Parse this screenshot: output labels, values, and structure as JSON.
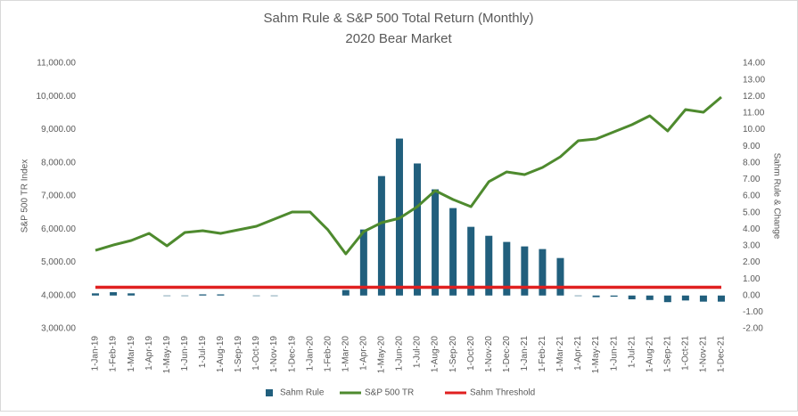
{
  "chart_data": {
    "type": "combo",
    "title": "Sahm Rule & S&P 500 Total Return (Monthly)",
    "subtitle": "2020 Bear Market",
    "y_label": "S&P 500 TR Index",
    "y2_label": "Sahm Rule & Change",
    "categories": [
      "1-Jan-19",
      "1-Feb-19",
      "1-Mar-19",
      "1-Apr-19",
      "1-May-19",
      "1-Jun-19",
      "1-Jul-19",
      "1-Aug-19",
      "1-Sep-19",
      "1-Oct-19",
      "1-Nov-19",
      "1-Dec-19",
      "1-Jan-20",
      "1-Feb-20",
      "1-Mar-20",
      "1-Apr-20",
      "1-May-20",
      "1-Jun-20",
      "1-Jul-20",
      "1-Aug-20",
      "1-Sep-20",
      "1-Oct-20",
      "1-Nov-20",
      "1-Dec-20",
      "1-Jan-21",
      "1-Feb-21",
      "1-Mar-21",
      "1-Apr-21",
      "1-May-21",
      "1-Jun-21",
      "1-Jul-21",
      "1-Aug-21",
      "1-Sep-21",
      "1-Oct-21",
      "1-Nov-21",
      "1-Dec-21"
    ],
    "series": [
      {
        "name": "Sahm Rule",
        "type": "bar",
        "axis": "y2",
        "color": "#215f7d",
        "values": [
          0.13,
          0.2,
          0.13,
          0,
          -0.03,
          -0.03,
          0.07,
          0.07,
          0,
          -0.03,
          -0.03,
          0,
          0,
          0,
          0.33,
          3.98,
          7.2,
          9.46,
          7.96,
          6.4,
          5.27,
          4.14,
          3.6,
          3.23,
          2.96,
          2.8,
          2.26,
          -0.03,
          -0.1,
          -0.07,
          -0.23,
          -0.27,
          -0.4,
          -0.3,
          -0.37,
          -0.37
        ]
      },
      {
        "name": "S&P 500 TR",
        "type": "line",
        "axis": "y",
        "color": "#4e8a2e",
        "values": [
          5362,
          5523,
          5658,
          5872,
          5497,
          5899,
          5953,
          5872,
          5980,
          6087,
          6302,
          6517,
          6517,
          5980,
          5255,
          5926,
          6195,
          6329,
          6678,
          7161,
          6893,
          6678,
          7430,
          7725,
          7644,
          7859,
          8181,
          8664,
          8718,
          8933,
          9148,
          9416,
          8960,
          9604,
          9523,
          9980
        ]
      },
      {
        "name": "Sahm Threshold",
        "type": "line",
        "axis": "y2",
        "color": "#e02020",
        "values": [
          0.5,
          0.5,
          0.5,
          0.5,
          0.5,
          0.5,
          0.5,
          0.5,
          0.5,
          0.5,
          0.5,
          0.5,
          0.5,
          0.5,
          0.5,
          0.5,
          0.5,
          0.5,
          0.5,
          0.5,
          0.5,
          0.5,
          0.5,
          0.5,
          0.5,
          0.5,
          0.5,
          0.5,
          0.5,
          0.5,
          0.5,
          0.5,
          0.5,
          0.5,
          0.5,
          0.5
        ]
      }
    ],
    "ylim": [
      3000,
      11000
    ],
    "yticks": [
      {
        "value": 3000,
        "label": "3,000.00"
      },
      {
        "value": 4000,
        "label": "4,000.00"
      },
      {
        "value": 5000,
        "label": "5,000.00"
      },
      {
        "value": 6000,
        "label": "6,000.00"
      },
      {
        "value": 7000,
        "label": "7,000.00"
      },
      {
        "value": 8000,
        "label": "8,000.00"
      },
      {
        "value": 9000,
        "label": "9,000.00"
      },
      {
        "value": 10000,
        "label": "10,000.00"
      },
      {
        "value": 11000,
        "label": "11,000.00"
      }
    ],
    "y2lim": [
      -2,
      14
    ],
    "y2ticks": [
      {
        "value": -2,
        "label": "-2.00"
      },
      {
        "value": -1,
        "label": "-1.00"
      },
      {
        "value": 0,
        "label": "0.00"
      },
      {
        "value": 1,
        "label": "1.00"
      },
      {
        "value": 2,
        "label": "2.00"
      },
      {
        "value": 3,
        "label": "3.00"
      },
      {
        "value": 4,
        "label": "4.00"
      },
      {
        "value": 5,
        "label": "5.00"
      },
      {
        "value": 6,
        "label": "6.00"
      },
      {
        "value": 7,
        "label": "7.00"
      },
      {
        "value": 8,
        "label": "8.00"
      },
      {
        "value": 9,
        "label": "9.00"
      },
      {
        "value": 10,
        "label": "10.00"
      },
      {
        "value": 11,
        "label": "11.00"
      },
      {
        "value": 12,
        "label": "12.00"
      },
      {
        "value": 13,
        "label": "13.00"
      },
      {
        "value": 14,
        "label": "14.00"
      }
    ],
    "grid": false,
    "legend": "bottom"
  }
}
